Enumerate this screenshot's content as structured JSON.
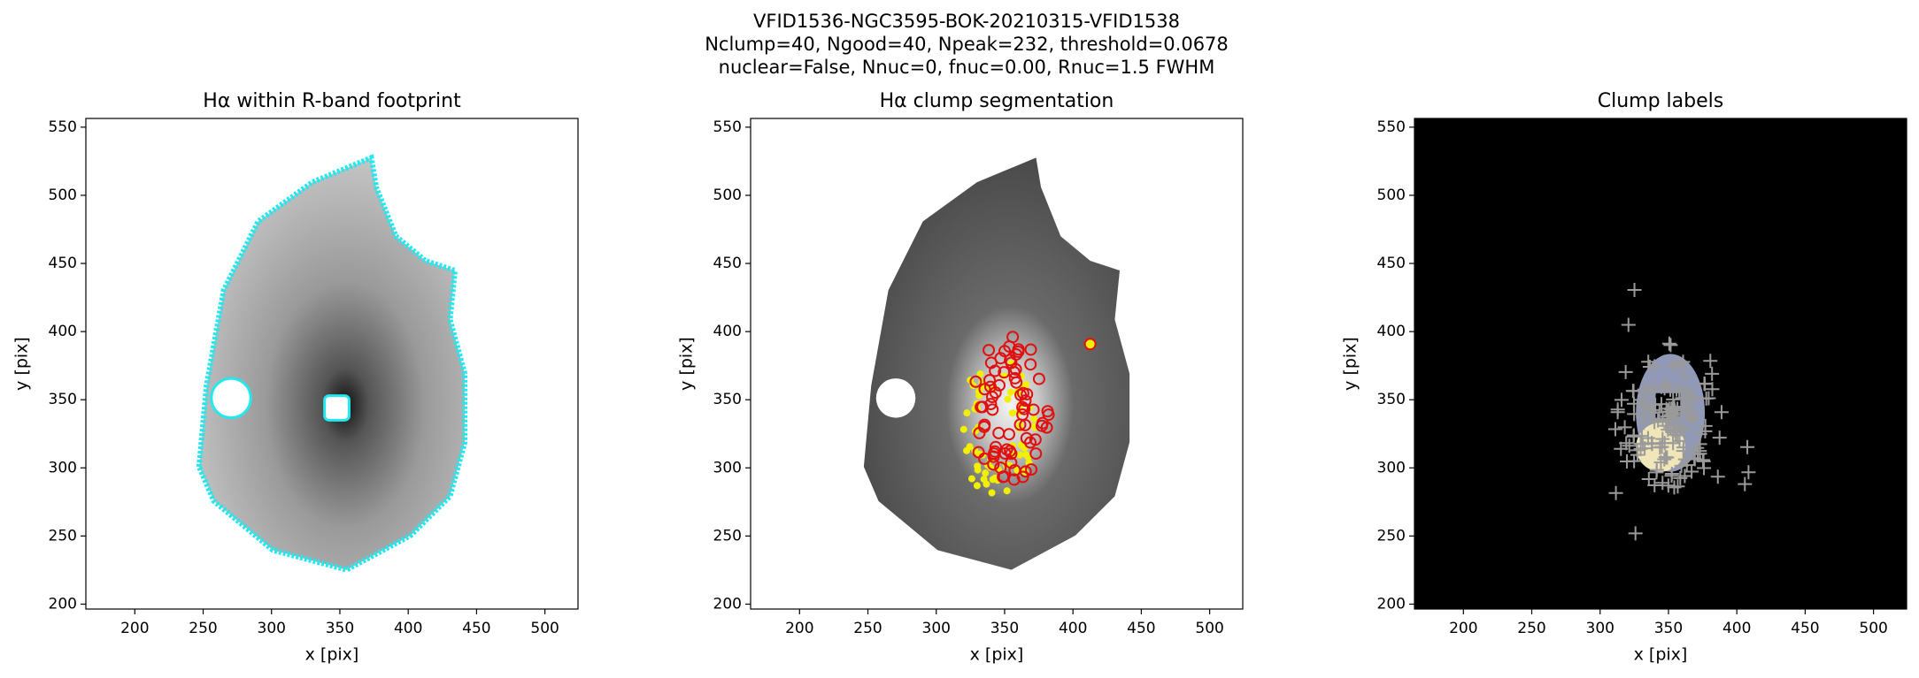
{
  "title": [
    "VFID1536-NGC3595-BOK-20210315-VFID1538",
    "Nclump=40, Ngood=40, Npeak=232, threshold=0.0678",
    "nuclear=False, Nnuc=0, fnuc=0.00, Rnuc=1.5 FWHM"
  ],
  "chart_data": [
    {
      "type": "image",
      "style": "footprint",
      "title": "Hα within R-band footprint",
      "xlabel": "x [pix]",
      "ylabel": "y [pix]",
      "xlim": [
        164.2,
        524.2
      ],
      "ylim": [
        196.4,
        556.4
      ],
      "xticks": [
        200,
        250,
        300,
        350,
        400,
        450,
        500
      ],
      "yticks": [
        200,
        250,
        300,
        350,
        400,
        450,
        500,
        550
      ]
    },
    {
      "type": "image",
      "style": "segmentation",
      "title": "Hα clump segmentation",
      "xlabel": "x [pix]",
      "ylabel": "y [pix]",
      "xlim": [
        164.2,
        524.2
      ],
      "ylim": [
        196.4,
        556.4
      ],
      "xticks": [
        200,
        250,
        300,
        350,
        400,
        450,
        500
      ],
      "yticks": [
        200,
        250,
        300,
        350,
        400,
        450,
        500,
        550
      ]
    },
    {
      "type": "image",
      "style": "labels",
      "title": "Clump labels",
      "xlabel": "x [pix]",
      "ylabel": "y [pix]",
      "xlim": [
        164.2,
        524.2
      ],
      "ylim": [
        196.4,
        556.4
      ],
      "xticks": [
        200,
        250,
        300,
        350,
        400,
        450,
        500
      ],
      "yticks": [
        200,
        250,
        300,
        350,
        400,
        450,
        500,
        550
      ]
    }
  ]
}
